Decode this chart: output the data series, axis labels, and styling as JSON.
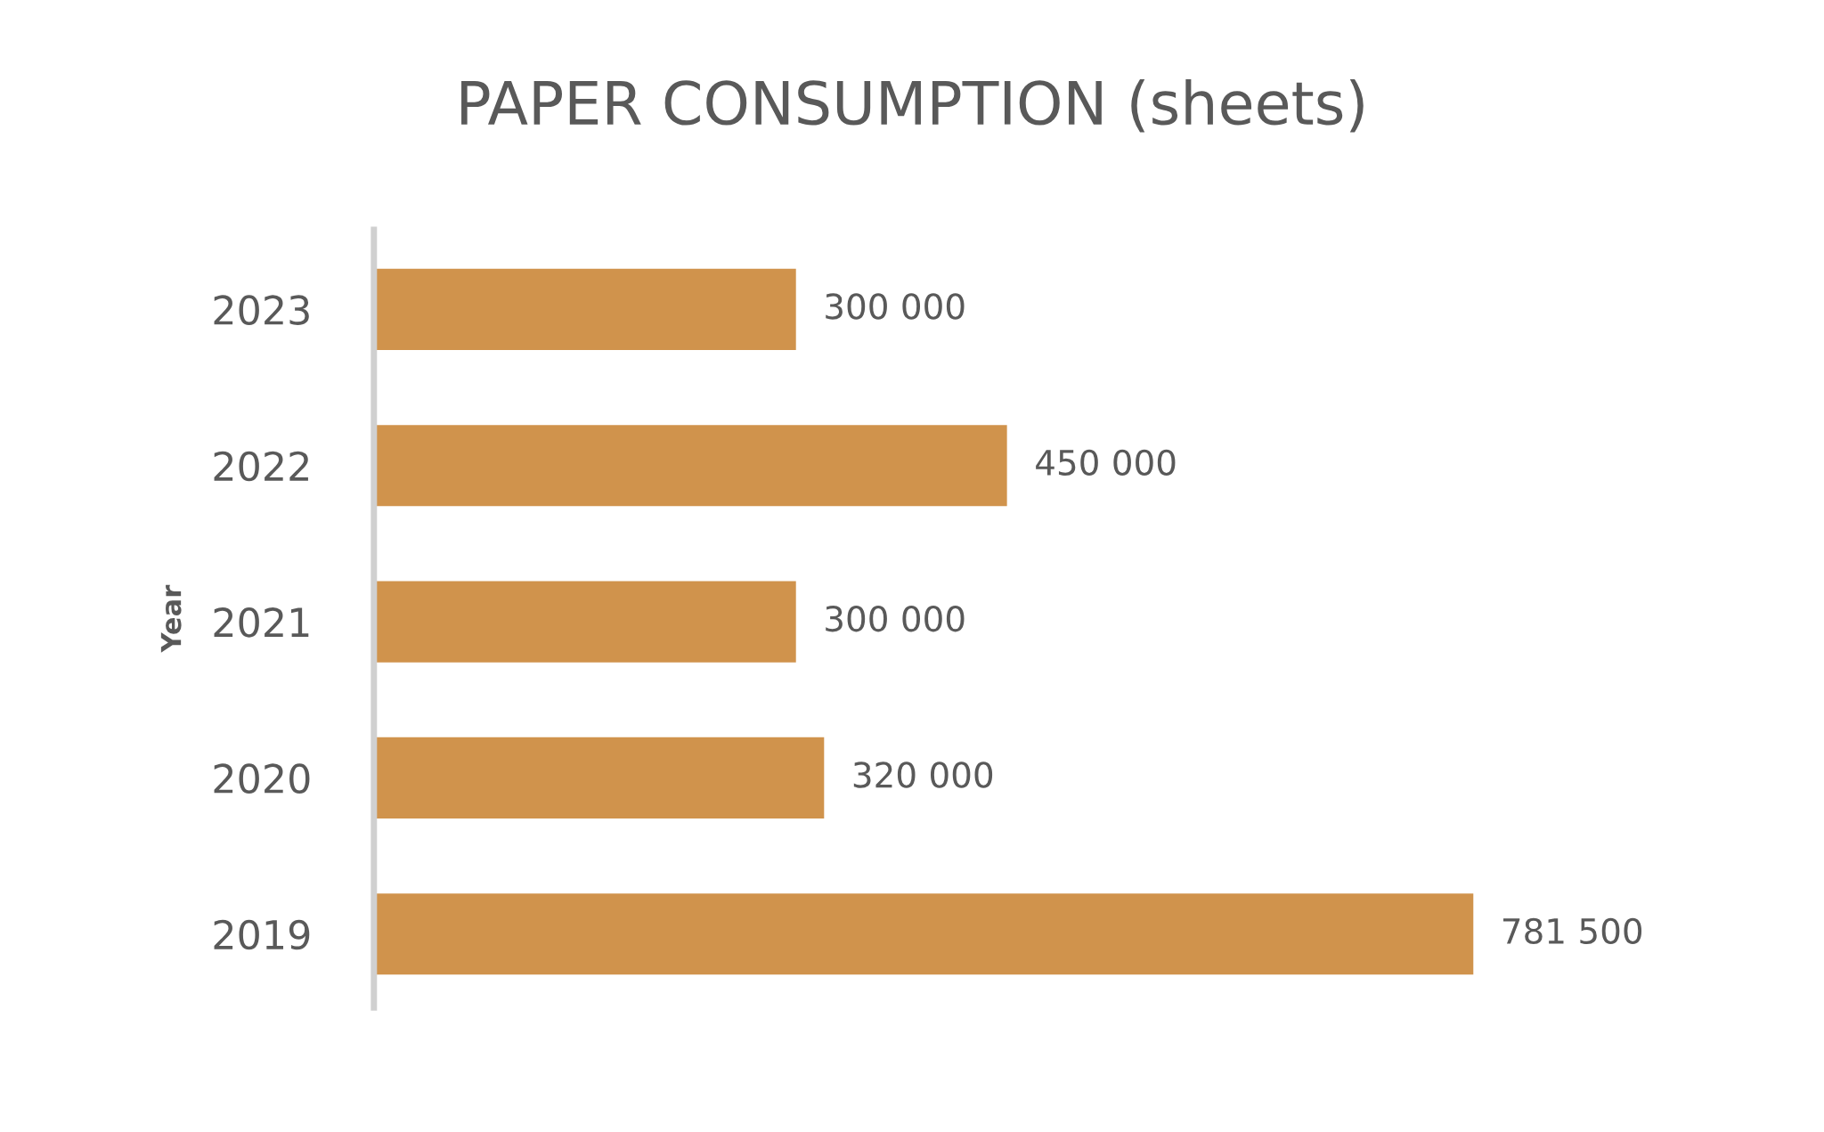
{
  "chart_data": {
    "type": "bar",
    "orientation": "horizontal",
    "title": "PAPER CONSUMPTION (sheets)",
    "ylabel": "Year",
    "categories": [
      "2023",
      "2022",
      "2021",
      "2020",
      "2019"
    ],
    "values": [
      300000,
      450000,
      300000,
      320000,
      781500
    ],
    "value_labels": [
      "300 000",
      "450 000",
      "300 000",
      "320 000",
      "781 500"
    ],
    "color": "#d0934c",
    "tick_labels": "y",
    "grid": false,
    "legend": false
  }
}
